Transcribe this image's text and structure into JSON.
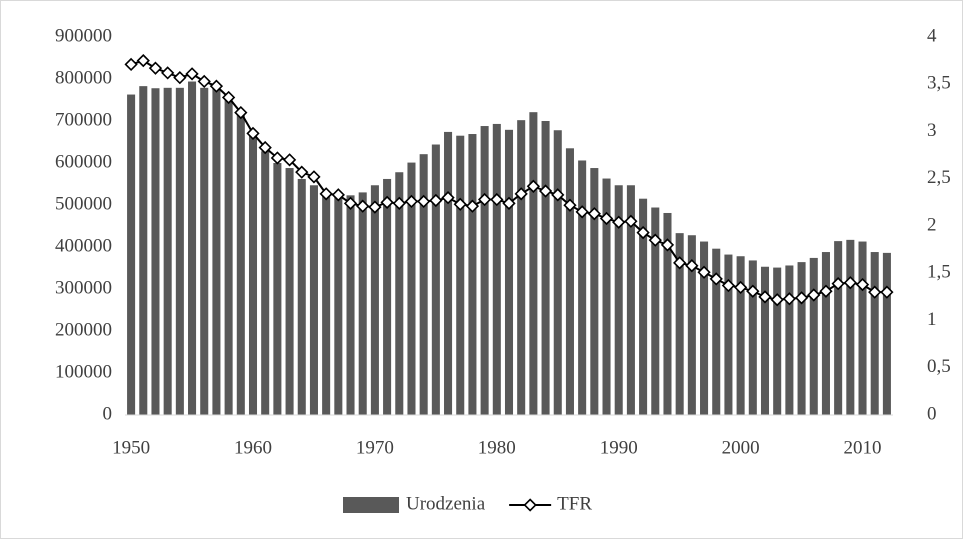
{
  "chart_data": {
    "type": "bar-line",
    "x": [
      1950,
      1951,
      1952,
      1953,
      1954,
      1955,
      1956,
      1957,
      1958,
      1959,
      1960,
      1961,
      1962,
      1963,
      1964,
      1965,
      1966,
      1967,
      1968,
      1969,
      1970,
      1971,
      1972,
      1973,
      1974,
      1975,
      1976,
      1977,
      1978,
      1979,
      1980,
      1981,
      1982,
      1983,
      1984,
      1985,
      1986,
      1987,
      1988,
      1989,
      1990,
      1991,
      1992,
      1993,
      1994,
      1995,
      1996,
      1997,
      1998,
      1999,
      2000,
      2001,
      2002,
      2003,
      2004,
      2005,
      2006,
      2007,
      2008,
      2009,
      2010,
      2011,
      2012
    ],
    "series": [
      {
        "name": "Urodzenia",
        "type": "bar",
        "color": "#595959",
        "values": [
          763000,
          783000,
          778000,
          779000,
          779000,
          794000,
          779000,
          783000,
          755000,
          723000,
          669000,
          628000,
          600000,
          588000,
          562000,
          547000,
          530000,
          521000,
          523000,
          530000,
          547000,
          562000,
          578000,
          601000,
          621000,
          644000,
          674000,
          665000,
          669000,
          688000,
          693000,
          679000,
          702000,
          721000,
          700000,
          678000,
          635000,
          606000,
          588000,
          563000,
          547000,
          547000,
          515000,
          494000,
          481000,
          433000,
          428000,
          413000,
          396000,
          382000,
          378000,
          368000,
          353000,
          351000,
          356000,
          364000,
          374000,
          388000,
          414000,
          417000,
          413000,
          388000,
          386000
        ]
      },
      {
        "name": "TFR",
        "type": "line",
        "axis": "y2",
        "color": "#000000",
        "values": [
          3.71,
          3.75,
          3.67,
          3.62,
          3.57,
          3.61,
          3.53,
          3.48,
          3.36,
          3.2,
          2.98,
          2.83,
          2.72,
          2.7,
          2.57,
          2.52,
          2.34,
          2.33,
          2.24,
          2.21,
          2.2,
          2.25,
          2.24,
          2.26,
          2.26,
          2.27,
          2.3,
          2.23,
          2.21,
          2.28,
          2.28,
          2.24,
          2.34,
          2.42,
          2.37,
          2.33,
          2.22,
          2.15,
          2.13,
          2.08,
          2.04,
          2.05,
          1.93,
          1.85,
          1.8,
          1.61,
          1.58,
          1.51,
          1.44,
          1.37,
          1.35,
          1.31,
          1.25,
          1.22,
          1.23,
          1.24,
          1.27,
          1.31,
          1.39,
          1.4,
          1.38,
          1.3,
          1.3
        ]
      }
    ],
    "xlim": [
      1949.5,
      2012.5
    ],
    "xticks": [
      1950,
      1960,
      1970,
      1980,
      1990,
      2000,
      2010
    ],
    "ylim": [
      0,
      900000
    ],
    "yticks": [
      0,
      100000,
      200000,
      300000,
      400000,
      500000,
      600000,
      700000,
      800000,
      900000
    ],
    "y2lim": [
      0,
      4
    ],
    "y2ticks": [
      0,
      {
        "value": 0.5,
        "label": "0,5"
      },
      1,
      {
        "value": 1.5,
        "label": "1,5"
      },
      2,
      {
        "value": 2.5,
        "label": "2,5"
      },
      3,
      {
        "value": 3.5,
        "label": "3,5"
      },
      4
    ],
    "legend": "bottom"
  }
}
